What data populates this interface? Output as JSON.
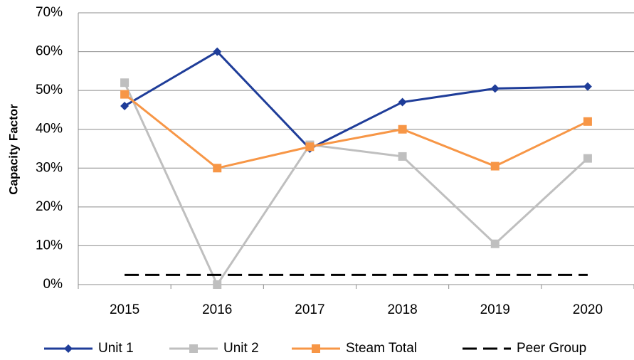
{
  "chart_data": {
    "type": "line",
    "y_label": "Capacity Factor",
    "categories": [
      "2015",
      "2016",
      "2017",
      "2018",
      "2019",
      "2020"
    ],
    "series": [
      {
        "name": "Unit 1",
        "color": "#1f3d99",
        "marker": "diamond",
        "dashed": false,
        "values": [
          46,
          60,
          35,
          47,
          50.5,
          51
        ]
      },
      {
        "name": "Unit 2",
        "color": "#bfbfbf",
        "marker": "square",
        "dashed": false,
        "values": [
          52,
          0,
          36,
          33,
          10.5,
          32.5
        ]
      },
      {
        "name": "Steam Total",
        "color": "#f79646",
        "marker": "square",
        "dashed": false,
        "values": [
          49,
          30,
          35.5,
          40,
          30.5,
          42
        ]
      },
      {
        "name": "Peer Group",
        "color": "#000000",
        "marker": "none",
        "dashed": true,
        "values": [
          2.5,
          2.5,
          2.5,
          2.5,
          2.5,
          2.5
        ]
      }
    ],
    "ylim": [
      0,
      70
    ],
    "yticks": [
      {
        "value": 0,
        "label": "0%"
      },
      {
        "value": 10,
        "label": "10%"
      },
      {
        "value": 20,
        "label": "20%"
      },
      {
        "value": 30,
        "label": "30%"
      },
      {
        "value": 40,
        "label": "40%"
      },
      {
        "value": 50,
        "label": "50%"
      },
      {
        "value": 60,
        "label": "60%"
      },
      {
        "value": 70,
        "label": "70%"
      }
    ],
    "grid": true,
    "legend": "bottom"
  }
}
